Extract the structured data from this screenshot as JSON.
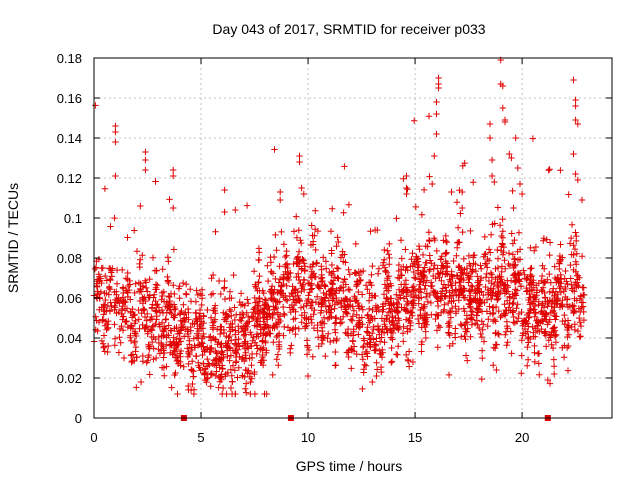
{
  "chart_data": {
    "type": "scatter",
    "title": "Day 043 of 2017, SRMTID for receiver p033",
    "xlabel": "GPS time / hours",
    "ylabel": "SRMTID / TECUs",
    "xlim": [
      0,
      24.2
    ],
    "ylim": [
      0,
      0.18
    ],
    "xticks": [
      0,
      5,
      10,
      15,
      20
    ],
    "yticks": [
      0,
      0.02,
      0.04,
      0.06,
      0.08,
      0.1,
      0.12,
      0.14,
      0.16,
      0.18
    ],
    "xtick_labels": [
      "0",
      "5",
      "10",
      "15",
      "20"
    ],
    "ytick_labels": [
      "0",
      "0.02",
      "0.04",
      "0.06",
      "0.08",
      "0.1",
      "0.12",
      "0.14",
      "0.16",
      "0.18"
    ],
    "grid": true,
    "series_color": "#e00000",
    "marker": "plus",
    "x_axis_markers_hours": [
      4.2,
      9.2,
      21.2
    ],
    "point_generation": {
      "x_range": [
        0.0,
        22.9
      ],
      "count": 2600,
      "baseline_profile": [
        [
          0.0,
          0.058
        ],
        [
          1.0,
          0.056
        ],
        [
          2.0,
          0.052
        ],
        [
          3.0,
          0.048
        ],
        [
          4.0,
          0.043
        ],
        [
          5.0,
          0.038
        ],
        [
          6.0,
          0.035
        ],
        [
          7.0,
          0.037
        ],
        [
          8.0,
          0.05
        ],
        [
          9.0,
          0.06
        ],
        [
          10.0,
          0.063
        ],
        [
          11.0,
          0.058
        ],
        [
          12.0,
          0.052
        ],
        [
          13.0,
          0.045
        ],
        [
          14.0,
          0.055
        ],
        [
          15.0,
          0.062
        ],
        [
          16.0,
          0.064
        ],
        [
          17.0,
          0.063
        ],
        [
          18.0,
          0.06
        ],
        [
          19.0,
          0.064
        ],
        [
          20.0,
          0.058
        ],
        [
          21.0,
          0.052
        ],
        [
          22.0,
          0.056
        ],
        [
          22.9,
          0.064
        ]
      ],
      "outliers": [
        [
          1.0,
          0.146
        ],
        [
          1.0,
          0.143
        ],
        [
          1.0,
          0.138
        ],
        [
          1.0,
          0.121
        ],
        [
          2.4,
          0.133
        ],
        [
          2.4,
          0.129
        ],
        [
          2.4,
          0.124
        ],
        [
          3.7,
          0.124
        ],
        [
          3.7,
          0.121
        ],
        [
          3.7,
          0.105
        ],
        [
          6.1,
          0.114
        ],
        [
          6.1,
          0.103
        ],
        [
          6.6,
          0.104
        ],
        [
          8.7,
          0.113
        ],
        [
          8.7,
          0.109
        ],
        [
          9.6,
          0.131
        ],
        [
          9.6,
          0.128
        ],
        [
          9.7,
          0.115
        ],
        [
          9.8,
          0.112
        ],
        [
          14.6,
          0.121
        ],
        [
          14.6,
          0.115
        ],
        [
          14.6,
          0.112
        ],
        [
          16.1,
          0.17
        ],
        [
          16.1,
          0.167
        ],
        [
          16.1,
          0.165
        ],
        [
          16.0,
          0.158
        ],
        [
          16.0,
          0.152
        ],
        [
          16.0,
          0.142
        ],
        [
          15.9,
          0.131
        ],
        [
          15.8,
          0.117
        ],
        [
          16.7,
          0.113
        ],
        [
          17.2,
          0.113
        ],
        [
          17.2,
          0.105
        ],
        [
          18.5,
          0.147
        ],
        [
          18.5,
          0.14
        ],
        [
          18.6,
          0.129
        ],
        [
          18.6,
          0.121
        ],
        [
          18.7,
          0.118
        ],
        [
          19.0,
          0.179
        ],
        [
          19.0,
          0.167
        ],
        [
          19.1,
          0.166
        ],
        [
          19.1,
          0.155
        ],
        [
          19.2,
          0.149
        ],
        [
          19.2,
          0.148
        ],
        [
          19.4,
          0.132
        ],
        [
          19.5,
          0.13
        ],
        [
          19.7,
          0.14
        ],
        [
          19.8,
          0.125
        ],
        [
          19.9,
          0.117
        ],
        [
          20.0,
          0.112
        ],
        [
          19.6,
          0.105
        ],
        [
          22.4,
          0.169
        ],
        [
          22.5,
          0.159
        ],
        [
          22.5,
          0.156
        ],
        [
          22.5,
          0.149
        ],
        [
          22.6,
          0.147
        ],
        [
          22.4,
          0.132
        ],
        [
          22.5,
          0.122
        ],
        [
          22.6,
          0.119
        ],
        [
          22.8,
          0.109
        ],
        [
          18.8,
          0.024
        ],
        [
          21.2,
          0.019
        ],
        [
          21.5,
          0.022
        ],
        [
          6.6,
          0.012
        ],
        [
          6.4,
          0.015
        ],
        [
          4.4,
          0.016
        ],
        [
          4.6,
          0.017
        ],
        [
          13.0,
          0.018
        ],
        [
          13.2,
          0.021
        ],
        [
          14.9,
          0.028
        ],
        [
          1.4,
          0.03
        ],
        [
          2.2,
          0.018
        ],
        [
          2.9,
          0.03
        ],
        [
          7.5,
          0.023
        ],
        [
          10.0,
          0.021
        ]
      ]
    }
  }
}
